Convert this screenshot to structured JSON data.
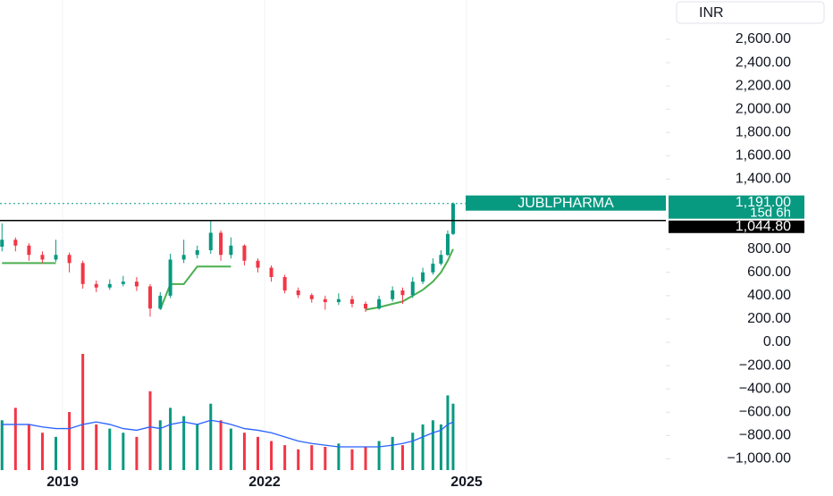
{
  "chart_data": {
    "type": "candlestick",
    "symbol": "JUBLPHARMA",
    "currency": "INR",
    "countdown": "15d 6h",
    "price_line": {
      "value": 1191,
      "label": "1,191.00"
    },
    "level_line": {
      "value": 1044.8,
      "label": "1,044.80"
    },
    "x": [
      2018.1,
      2018.3,
      2018.5,
      2018.7,
      2018.9,
      2019.1,
      2019.3,
      2019.5,
      2019.7,
      2019.9,
      2020.1,
      2020.3,
      2020.45,
      2020.6,
      2020.8,
      2021.0,
      2021.2,
      2021.35,
      2021.5,
      2021.7,
      2021.9,
      2022.1,
      2022.3,
      2022.5,
      2022.7,
      2022.9,
      2023.1,
      2023.3,
      2023.5,
      2023.7,
      2023.9,
      2024.05,
      2024.2,
      2024.35,
      2024.5,
      2024.62,
      2024.72,
      2024.8
    ],
    "open": [
      820,
      880,
      830,
      750,
      710,
      750,
      680,
      500,
      470,
      500,
      520,
      480,
      290,
      400,
      710,
      750,
      790,
      940,
      750,
      830,
      700,
      640,
      560,
      445,
      405,
      370,
      345,
      370,
      330,
      290,
      370,
      445,
      405,
      520,
      600,
      675,
      750,
      930
    ],
    "high": [
      1020,
      900,
      850,
      780,
      880,
      770,
      700,
      530,
      540,
      570,
      560,
      500,
      430,
      760,
      880,
      830,
      1040,
      960,
      900,
      840,
      720,
      660,
      580,
      470,
      420,
      400,
      420,
      400,
      350,
      400,
      480,
      470,
      560,
      640,
      720,
      790,
      960,
      1200
    ],
    "low": [
      780,
      780,
      700,
      680,
      690,
      600,
      460,
      430,
      450,
      480,
      440,
      220,
      280,
      380,
      680,
      720,
      760,
      700,
      720,
      660,
      600,
      520,
      420,
      380,
      340,
      280,
      320,
      300,
      260,
      280,
      350,
      330,
      380,
      500,
      580,
      660,
      740,
      920
    ],
    "close": [
      880,
      830,
      750,
      710,
      750,
      680,
      500,
      470,
      500,
      520,
      480,
      290,
      400,
      710,
      750,
      790,
      940,
      750,
      830,
      700,
      640,
      560,
      445,
      405,
      370,
      345,
      370,
      330,
      290,
      370,
      445,
      405,
      520,
      600,
      675,
      750,
      930,
      1191
    ],
    "trend": [
      680,
      680,
      680,
      680,
      680,
      null,
      null,
      null,
      null,
      null,
      null,
      null,
      280,
      500,
      500,
      650,
      650,
      650,
      650,
      null,
      null,
      null,
      null,
      null,
      null,
      null,
      null,
      null,
      280,
      300,
      330,
      350,
      400,
      450,
      520,
      600,
      700,
      800
    ],
    "volume": [
      60,
      75,
      55,
      45,
      40,
      70,
      140,
      55,
      50,
      45,
      40,
      95,
      60,
      75,
      65,
      55,
      80,
      60,
      50,
      45,
      40,
      35,
      30,
      25,
      30,
      28,
      32,
      25,
      28,
      35,
      40,
      30,
      45,
      55,
      60,
      55,
      90,
      80
    ],
    "volume_ma": [
      55,
      55,
      55,
      52,
      50,
      50,
      55,
      58,
      55,
      50,
      48,
      52,
      50,
      55,
      58,
      55,
      60,
      58,
      55,
      50,
      48,
      45,
      40,
      35,
      32,
      30,
      28,
      28,
      28,
      28,
      30,
      32,
      35,
      40,
      45,
      48,
      55,
      58
    ],
    "xlim": [
      2018.07,
      2027.96
    ],
    "xticks": [
      2019,
      2022,
      2025
    ],
    "ylim": [
      -1127,
      2937
    ],
    "yticks": [
      {
        "value": 2600,
        "label": "2,600.00"
      },
      {
        "value": 2400,
        "label": "2,400.00"
      },
      {
        "value": 2200,
        "label": "2,200.00"
      },
      {
        "value": 2000,
        "label": "2,000.00"
      },
      {
        "value": 1800,
        "label": "1,800.00"
      },
      {
        "value": 1600,
        "label": "1,600.00"
      },
      {
        "value": 1400,
        "label": "1,400.00"
      },
      {
        "value": 800,
        "label": "800.00"
      },
      {
        "value": 600,
        "label": "600.00"
      },
      {
        "value": 400,
        "label": "400.00"
      },
      {
        "value": 200,
        "label": "200.00"
      },
      {
        "value": 0,
        "label": "0.00"
      },
      {
        "value": -200,
        "label": "−200.00"
      },
      {
        "value": -400,
        "label": "−400.00"
      },
      {
        "value": -600,
        "label": "−600.00"
      },
      {
        "value": -800,
        "label": "−800.00"
      },
      {
        "value": -1000,
        "label": "−1,000.00"
      }
    ]
  }
}
